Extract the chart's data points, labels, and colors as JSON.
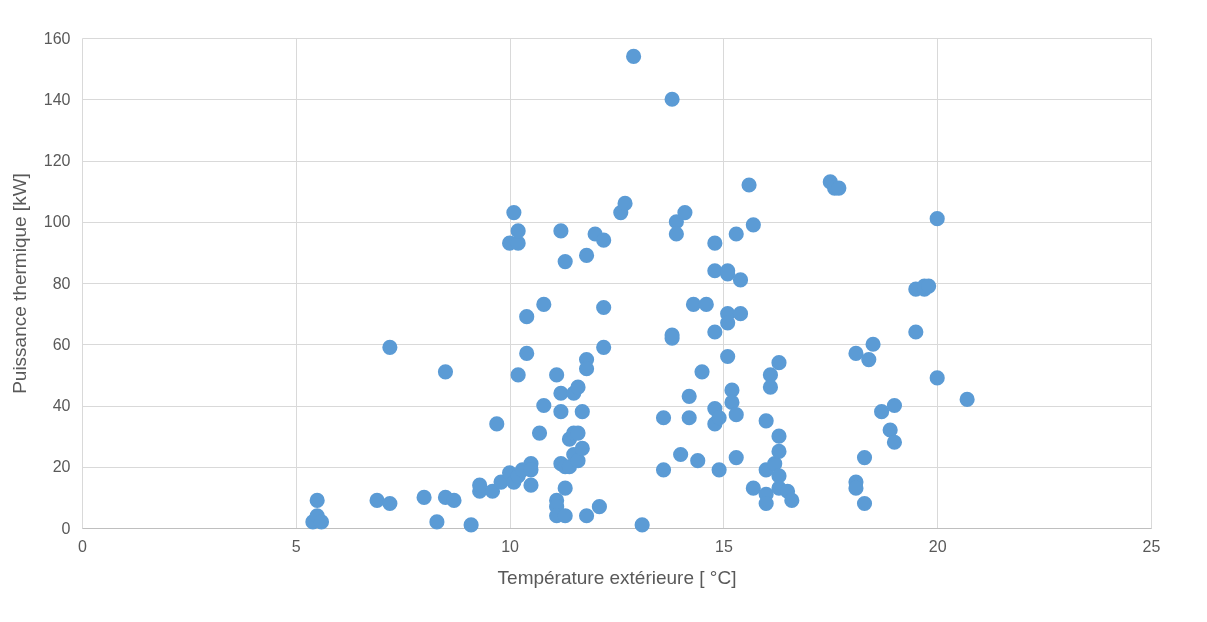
{
  "chart_data": {
    "type": "scatter",
    "xlabel": "Température extérieure [ °C]",
    "ylabel": "Puissance thermique [kW]",
    "xlim": [
      0,
      25
    ],
    "xticks": [
      0,
      5,
      10,
      15,
      20,
      25
    ],
    "ylim": [
      0,
      160
    ],
    "yticks": [
      0,
      20,
      40,
      60,
      80,
      100,
      120,
      140,
      160
    ],
    "grid": true,
    "marker": "circle",
    "series": [
      {
        "color": "#5b9bd5",
        "x": [
          5.4,
          5.5,
          5.5,
          5.6,
          6.9,
          7.2,
          7.2,
          8.0,
          8.3,
          8.5,
          8.5,
          8.7,
          9.1,
          9.3,
          9.3,
          9.6,
          9.7,
          9.8,
          10.0,
          10.0,
          10.1,
          10.1,
          10.2,
          10.2,
          10.2,
          10.2,
          10.3,
          10.4,
          10.4,
          10.5,
          10.5,
          10.5,
          10.7,
          10.8,
          10.8,
          11.1,
          11.1,
          11.1,
          11.1,
          11.2,
          11.2,
          11.2,
          11.2,
          11.3,
          11.3,
          11.3,
          11.3,
          11.4,
          11.4,
          11.5,
          11.5,
          11.5,
          11.6,
          11.6,
          11.6,
          11.7,
          11.7,
          11.8,
          11.8,
          11.8,
          11.8,
          12.0,
          12.1,
          12.2,
          12.2,
          12.2,
          12.6,
          12.7,
          12.9,
          13.1,
          13.6,
          13.6,
          13.8,
          13.8,
          13.8,
          13.9,
          13.9,
          14.0,
          14.1,
          14.2,
          14.2,
          14.3,
          14.4,
          14.5,
          14.6,
          14.8,
          14.8,
          14.8,
          14.8,
          14.8,
          14.9,
          14.9,
          15.1,
          15.1,
          15.1,
          15.1,
          15.1,
          15.2,
          15.2,
          15.3,
          15.3,
          15.3,
          15.4,
          15.4,
          15.6,
          15.7,
          15.7,
          16.0,
          16.0,
          16.0,
          16.0,
          16.1,
          16.1,
          16.2,
          16.3,
          16.3,
          16.3,
          16.3,
          16.3,
          16.5,
          16.6,
          17.5,
          17.6,
          17.7,
          18.1,
          18.1,
          18.1,
          18.3,
          18.3,
          18.4,
          18.5,
          18.7,
          18.9,
          19.0,
          19.0,
          19.5,
          19.5,
          19.7,
          19.7,
          19.8,
          20.0,
          20.0,
          20.7
        ],
        "values": [
          2,
          4,
          9,
          2,
          9,
          8,
          59,
          10,
          2,
          10,
          51,
          9,
          1,
          12,
          14,
          12,
          34,
          15,
          18,
          93,
          103,
          15,
          17,
          50,
          93,
          97,
          19,
          69,
          57,
          21,
          14,
          19,
          31,
          40,
          73,
          50,
          9,
          7,
          4,
          21,
          44,
          38,
          97,
          87,
          20,
          13,
          4,
          29,
          20,
          31,
          44,
          24,
          46,
          31,
          22,
          38,
          26,
          55,
          52,
          89,
          4,
          96,
          7,
          94,
          72,
          59,
          103,
          106,
          154,
          1,
          36,
          19,
          140,
          63,
          62,
          100,
          96,
          24,
          103,
          43,
          36,
          73,
          22,
          51,
          73,
          93,
          84,
          64,
          39,
          34,
          36,
          19,
          84,
          83,
          70,
          67,
          56,
          45,
          41,
          96,
          37,
          23,
          81,
          70,
          112,
          99,
          13,
          35,
          19,
          11,
          8,
          50,
          46,
          21,
          54,
          30,
          25,
          17,
          13,
          12,
          9,
          113,
          111,
          111,
          57,
          15,
          13,
          23,
          8,
          55,
          60,
          38,
          32,
          40,
          28,
          78,
          64,
          78,
          79,
          79,
          101,
          49,
          42
        ]
      }
    ]
  }
}
